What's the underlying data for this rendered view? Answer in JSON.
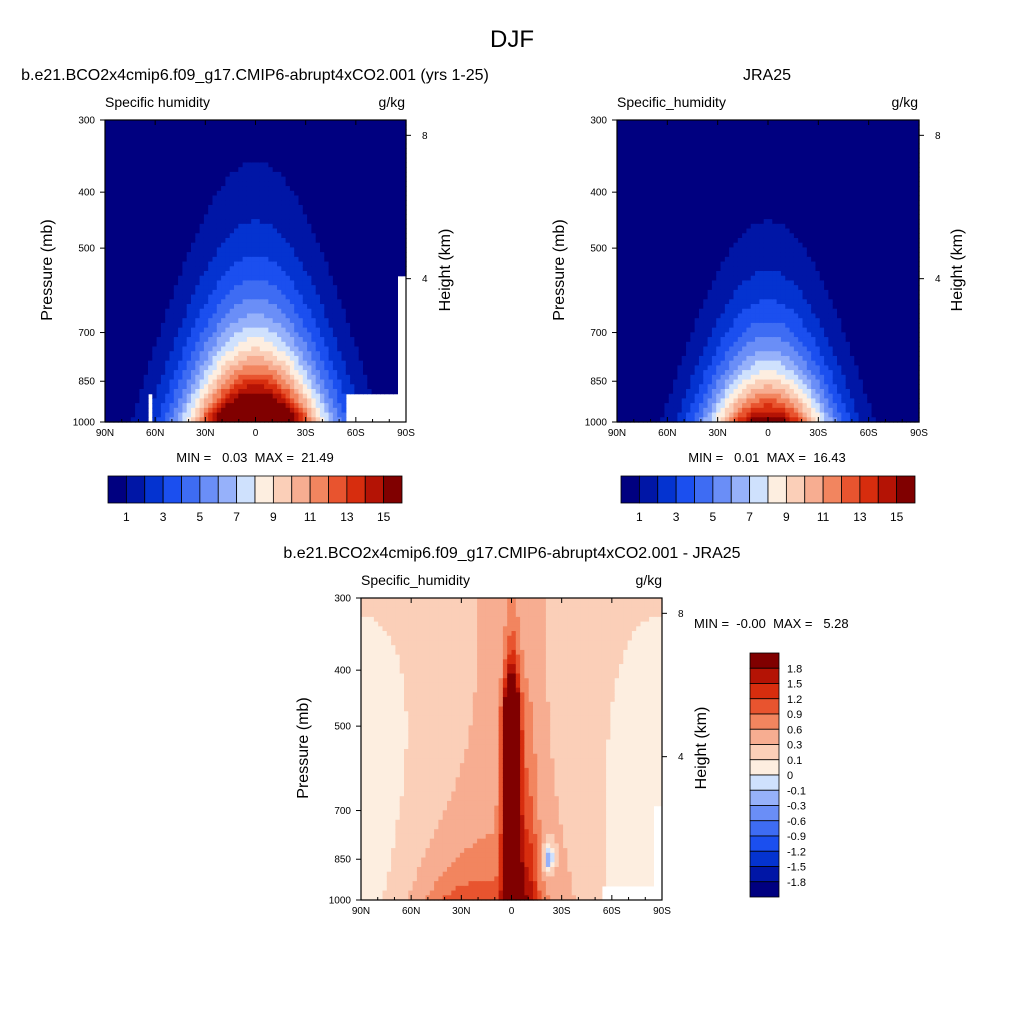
{
  "figure_title": "DJF",
  "chart_data": [
    {
      "id": "model",
      "type": "heatmap",
      "panel_title": "b.e21.BCO2x4cmip6.f09_g17.CMIP6-abrupt4xCO2.001 (yrs 1-25)",
      "left_label": "Specific humidity",
      "right_label": "g/kg",
      "ylabel": "Pressure (mb)",
      "right_axis_label": "Height (km)",
      "x_ticks": [
        "90N",
        "60N",
        "30N",
        "0",
        "30S",
        "60S",
        "90S"
      ],
      "x_tick_values": [
        90,
        60,
        30,
        0,
        -30,
        -60,
        -90
      ],
      "y_ticks": [
        "300",
        "400",
        "500",
        "700",
        "850",
        "1000"
      ],
      "y_tick_values": [
        300,
        400,
        500,
        700,
        850,
        1000
      ],
      "height_ticks": [
        "8",
        "4"
      ],
      "height_tick_values": [
        8,
        4
      ],
      "xlim": [
        90,
        -90
      ],
      "ylim": [
        1000,
        300
      ],
      "min_label": "MIN =   0.03  MAX =  21.49",
      "min": 0.03,
      "max": 21.49,
      "levels": [
        0,
        1,
        2,
        3,
        4,
        5,
        6,
        7,
        8,
        9,
        10,
        11,
        12,
        13,
        14,
        15
      ],
      "colorbar_labels": [
        "1",
        "3",
        "5",
        "7",
        "9",
        "11",
        "13",
        "15"
      ],
      "colorbar_label_values": [
        1,
        3,
        5,
        7,
        9,
        11,
        13,
        15
      ],
      "colorbar_orientation": "horizontal",
      "field": {
        "peak": 21.49,
        "floor": 0.03,
        "center_lat": 0,
        "halfwidth_surface": 42,
        "scale_height": 2.35
      },
      "missing_regions": [
        {
          "lat_from": -55,
          "lat_to": -90,
          "p_from": 890,
          "p_to": 1000
        },
        {
          "lat_from": -86,
          "lat_to": -90,
          "p_from": 560,
          "p_to": 1000
        },
        {
          "lat_from": 63,
          "lat_to": 61,
          "p_from": 900,
          "p_to": 1000
        }
      ]
    },
    {
      "id": "obs",
      "type": "heatmap",
      "panel_title": "JRA25",
      "left_label": "Specific_humidity",
      "right_label": "g/kg",
      "ylabel": "Pressure (mb)",
      "right_axis_label": "Height (km)",
      "x_ticks": [
        "90N",
        "60N",
        "30N",
        "0",
        "30S",
        "60S",
        "90S"
      ],
      "x_tick_values": [
        90,
        60,
        30,
        0,
        -30,
        -60,
        -90
      ],
      "y_ticks": [
        "300",
        "400",
        "500",
        "700",
        "850",
        "1000"
      ],
      "y_tick_values": [
        300,
        400,
        500,
        700,
        850,
        1000
      ],
      "height_ticks": [
        "8",
        "4"
      ],
      "height_tick_values": [
        8,
        4
      ],
      "xlim": [
        90,
        -90
      ],
      "ylim": [
        1000,
        300
      ],
      "min_label": "MIN =   0.01  MAX =  16.43",
      "min": 0.01,
      "max": 16.43,
      "levels": [
        0,
        1,
        2,
        3,
        4,
        5,
        6,
        7,
        8,
        9,
        10,
        11,
        12,
        13,
        14,
        15
      ],
      "colorbar_labels": [
        "1",
        "3",
        "5",
        "7",
        "9",
        "11",
        "13",
        "15"
      ],
      "colorbar_label_values": [
        1,
        3,
        5,
        7,
        9,
        11,
        13,
        15
      ],
      "colorbar_orientation": "horizontal",
      "field": {
        "peak": 16.43,
        "floor": 0.01,
        "center_lat": 0,
        "halfwidth_surface": 38,
        "scale_height": 2.0
      },
      "missing_regions": []
    },
    {
      "id": "diff",
      "type": "heatmap",
      "panel_title": "b.e21.BCO2x4cmip6.f09_g17.CMIP6-abrupt4xCO2.001 - JRA25",
      "left_label": "Specific_humidity",
      "right_label": "g/kg",
      "ylabel": "Pressure (mb)",
      "right_axis_label": "Height (km)",
      "x_ticks": [
        "90N",
        "60N",
        "30N",
        "0",
        "30S",
        "60S",
        "90S"
      ],
      "x_tick_values": [
        90,
        60,
        30,
        0,
        -30,
        -60,
        -90
      ],
      "y_ticks": [
        "300",
        "400",
        "500",
        "700",
        "850",
        "1000"
      ],
      "y_tick_values": [
        300,
        400,
        500,
        700,
        850,
        1000
      ],
      "height_ticks": [
        "8",
        "4"
      ],
      "height_tick_values": [
        8,
        4
      ],
      "xlim": [
        90,
        -90
      ],
      "ylim": [
        1000,
        300
      ],
      "min_label": "MIN =  -0.00  MAX =   5.28",
      "min": -0.0,
      "max": 5.28,
      "levels": [
        -1.8,
        -1.5,
        -1.2,
        -0.9,
        -0.6,
        -0.3,
        -0.1,
        0,
        0.1,
        0.3,
        0.6,
        0.9,
        1.2,
        1.5,
        1.8
      ],
      "colorbar_labels": [
        "1.8",
        "1.5",
        "1.2",
        "0.9",
        "0.6",
        "0.3",
        "0.1",
        "0",
        "-0.1",
        "-0.3",
        "-0.6",
        "-0.9",
        "-1.2",
        "-1.5",
        "-1.8"
      ],
      "colorbar_label_values": [
        1.8,
        1.5,
        1.2,
        0.9,
        0.6,
        0.3,
        0.1,
        0,
        -0.1,
        -0.3,
        -0.6,
        -0.9,
        -1.2,
        -1.5,
        -1.8
      ],
      "colorbar_orientation": "vertical",
      "missing_regions": [
        {
          "lat_from": -55,
          "lat_to": -90,
          "p_from": 940,
          "p_to": 1000
        },
        {
          "lat_from": -85,
          "lat_to": -90,
          "p_from": 690,
          "p_to": 1000
        }
      ]
    }
  ],
  "colors": {
    "seq16": [
      "#000080",
      "#0016a6",
      "#0433d0",
      "#1b4fef",
      "#3e6cf3",
      "#6a8ef7",
      "#96b1fa",
      "#cfe1fd",
      "#fdeee0",
      "#fbcfb8",
      "#f7ad91",
      "#f2855f",
      "#e8542f",
      "#d72d0e",
      "#b41305",
      "#800000"
    ],
    "div16": [
      "#000080",
      "#0016a6",
      "#0433d0",
      "#1b4fef",
      "#3e6cf3",
      "#6a8ef7",
      "#96b1fa",
      "#cfe1fd",
      "#fdeee0",
      "#fbcfb8",
      "#f7ad91",
      "#f2855f",
      "#e8542f",
      "#d72d0e",
      "#b41305",
      "#800000"
    ]
  }
}
